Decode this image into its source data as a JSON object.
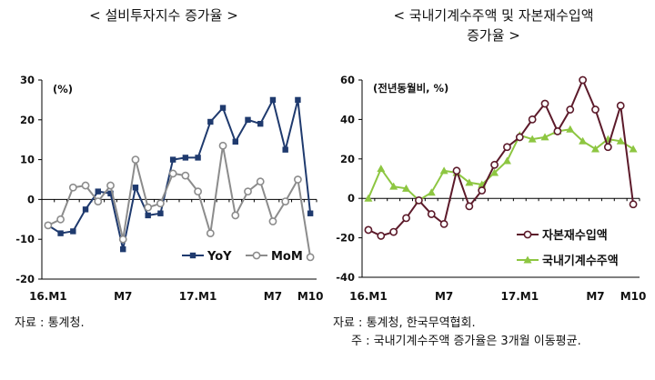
{
  "left_title": "< 설비투자지수 증가율 >",
  "right_title_line1": "< 국내기계수주액 및 자본재수입액",
  "right_title_line2": "증가율 >",
  "left_source": "자료 : 통계청.",
  "right_source": "자료 : 통계청, 한국무역협회.",
  "right_note": "주 : 국내기계수주액 증가율은 3개월 이동평균.",
  "chart_data": [
    {
      "type": "line",
      "unit_label": "(%)",
      "xlabel": "",
      "ylabel": "",
      "x_tick_labels": [
        {
          "index": 0,
          "label": "16.M1"
        },
        {
          "index": 6,
          "label": "M7"
        },
        {
          "index": 12,
          "label": "17.M1"
        },
        {
          "index": 18,
          "label": "M7"
        },
        {
          "index": 21,
          "label": "M10"
        }
      ],
      "ylim": [
        -20,
        30
      ],
      "yticks": [
        -20,
        -10,
        0,
        10,
        20,
        30
      ],
      "grid": false,
      "legend": "bottom-right",
      "series": [
        {
          "name": "YoY",
          "color": "#1f3a6e",
          "marker": "square",
          "values": [
            -6.5,
            -8.5,
            -8,
            -2.5,
            2,
            1.5,
            -12.5,
            3,
            -4,
            -3.5,
            10,
            10.5,
            10.5,
            19.5,
            23,
            14.5,
            20,
            19,
            25,
            12.5,
            25,
            -3.5
          ]
        },
        {
          "name": "MoM",
          "color": "#8c8c8c",
          "marker": "circle",
          "values": [
            -6.5,
            -5,
            3,
            3.5,
            -0.5,
            3.5,
            -10,
            10,
            -2,
            -1,
            6.5,
            6,
            2,
            -8.5,
            13.5,
            -4,
            2,
            4.5,
            -5.5,
            -0.5,
            5,
            -14.5
          ]
        }
      ]
    },
    {
      "type": "line",
      "unit_label": "(전년동월비, %)",
      "xlabel": "",
      "ylabel": "",
      "x_tick_labels": [
        {
          "index": 0,
          "label": "16.M1"
        },
        {
          "index": 6,
          "label": "M7"
        },
        {
          "index": 12,
          "label": "17.M1"
        },
        {
          "index": 18,
          "label": "M7"
        },
        {
          "index": 21,
          "label": "M10"
        }
      ],
      "ylim": [
        -40,
        60
      ],
      "yticks": [
        -40,
        -20,
        0,
        20,
        40,
        60
      ],
      "grid": false,
      "legend": "bottom-right",
      "series": [
        {
          "name": "자본재수입액",
          "color": "#5c1a2a",
          "marker": "circle",
          "values": [
            -16,
            -19,
            -17,
            -10,
            -1,
            -8,
            -13,
            14,
            -4,
            4,
            17,
            26,
            31,
            40,
            48,
            34,
            45,
            60,
            45,
            26,
            47,
            -3
          ]
        },
        {
          "name": "국내기계수주액",
          "color": "#8dc641",
          "marker": "triangle",
          "values": [
            0,
            15,
            6,
            5,
            -1,
            3,
            14,
            13,
            8,
            7,
            13,
            19,
            32,
            30,
            31,
            34,
            35,
            29,
            25,
            30,
            29,
            25
          ]
        }
      ]
    }
  ]
}
